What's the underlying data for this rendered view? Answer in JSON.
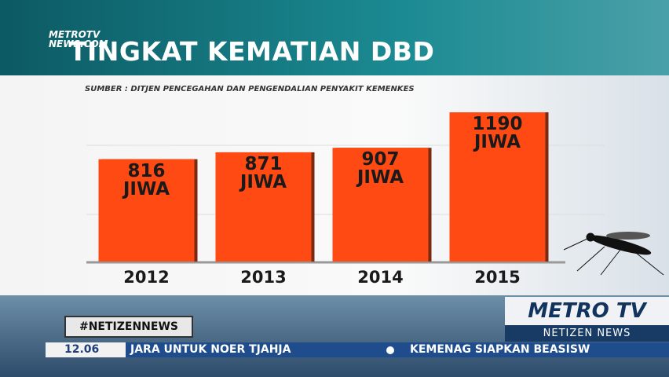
{
  "broadcast": {
    "logo": "METROTV NEWS.COM",
    "hashtag": "#NETIZENNEWS",
    "channel": "METRO TV",
    "program": "NETIZEN NEWS",
    "time": "12.06",
    "ticker": [
      "JARA UNTUK NOER TJAHJA",
      "KEMENAG SIAPKAN BEASISW"
    ]
  },
  "chart_data": {
    "type": "bar",
    "title": "TINGKAT KEMATIAN DBD",
    "subtitle": "SUMBER : DITJEN PENCEGAHAN DAN PENGENDALIAN PENYAKIT KEMENKES",
    "categories": [
      "2012",
      "2013",
      "2014",
      "2015"
    ],
    "values": [
      816,
      871,
      907,
      1190
    ],
    "value_labels": [
      "816 JIWA",
      "871 JIWA",
      "907 JIWA",
      "1190 JIWA"
    ],
    "color": "#ff4a14"
  }
}
